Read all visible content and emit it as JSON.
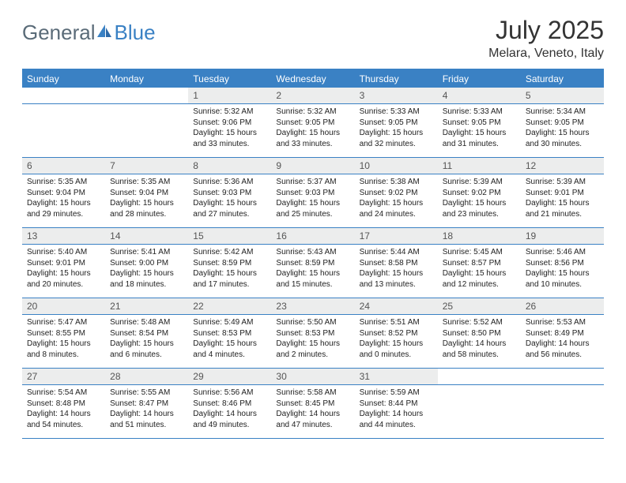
{
  "logo": {
    "textA": "General",
    "textB": "Blue"
  },
  "title": "July 2025",
  "location": "Melara, Veneto, Italy",
  "colors": {
    "accent": "#3a81c4",
    "header_bg": "#3a81c4",
    "day_bg": "#eceded",
    "text": "#222222",
    "logo_gray": "#5a6b78"
  },
  "weekdays": [
    "Sunday",
    "Monday",
    "Tuesday",
    "Wednesday",
    "Thursday",
    "Friday",
    "Saturday"
  ],
  "weeks": [
    [
      null,
      null,
      {
        "n": "1",
        "sr": "Sunrise: 5:32 AM",
        "ss": "Sunset: 9:06 PM",
        "d1": "Daylight: 15 hours",
        "d2": "and 33 minutes."
      },
      {
        "n": "2",
        "sr": "Sunrise: 5:32 AM",
        "ss": "Sunset: 9:05 PM",
        "d1": "Daylight: 15 hours",
        "d2": "and 33 minutes."
      },
      {
        "n": "3",
        "sr": "Sunrise: 5:33 AM",
        "ss": "Sunset: 9:05 PM",
        "d1": "Daylight: 15 hours",
        "d2": "and 32 minutes."
      },
      {
        "n": "4",
        "sr": "Sunrise: 5:33 AM",
        "ss": "Sunset: 9:05 PM",
        "d1": "Daylight: 15 hours",
        "d2": "and 31 minutes."
      },
      {
        "n": "5",
        "sr": "Sunrise: 5:34 AM",
        "ss": "Sunset: 9:05 PM",
        "d1": "Daylight: 15 hours",
        "d2": "and 30 minutes."
      }
    ],
    [
      {
        "n": "6",
        "sr": "Sunrise: 5:35 AM",
        "ss": "Sunset: 9:04 PM",
        "d1": "Daylight: 15 hours",
        "d2": "and 29 minutes."
      },
      {
        "n": "7",
        "sr": "Sunrise: 5:35 AM",
        "ss": "Sunset: 9:04 PM",
        "d1": "Daylight: 15 hours",
        "d2": "and 28 minutes."
      },
      {
        "n": "8",
        "sr": "Sunrise: 5:36 AM",
        "ss": "Sunset: 9:03 PM",
        "d1": "Daylight: 15 hours",
        "d2": "and 27 minutes."
      },
      {
        "n": "9",
        "sr": "Sunrise: 5:37 AM",
        "ss": "Sunset: 9:03 PM",
        "d1": "Daylight: 15 hours",
        "d2": "and 25 minutes."
      },
      {
        "n": "10",
        "sr": "Sunrise: 5:38 AM",
        "ss": "Sunset: 9:02 PM",
        "d1": "Daylight: 15 hours",
        "d2": "and 24 minutes."
      },
      {
        "n": "11",
        "sr": "Sunrise: 5:39 AM",
        "ss": "Sunset: 9:02 PM",
        "d1": "Daylight: 15 hours",
        "d2": "and 23 minutes."
      },
      {
        "n": "12",
        "sr": "Sunrise: 5:39 AM",
        "ss": "Sunset: 9:01 PM",
        "d1": "Daylight: 15 hours",
        "d2": "and 21 minutes."
      }
    ],
    [
      {
        "n": "13",
        "sr": "Sunrise: 5:40 AM",
        "ss": "Sunset: 9:01 PM",
        "d1": "Daylight: 15 hours",
        "d2": "and 20 minutes."
      },
      {
        "n": "14",
        "sr": "Sunrise: 5:41 AM",
        "ss": "Sunset: 9:00 PM",
        "d1": "Daylight: 15 hours",
        "d2": "and 18 minutes."
      },
      {
        "n": "15",
        "sr": "Sunrise: 5:42 AM",
        "ss": "Sunset: 8:59 PM",
        "d1": "Daylight: 15 hours",
        "d2": "and 17 minutes."
      },
      {
        "n": "16",
        "sr": "Sunrise: 5:43 AM",
        "ss": "Sunset: 8:59 PM",
        "d1": "Daylight: 15 hours",
        "d2": "and 15 minutes."
      },
      {
        "n": "17",
        "sr": "Sunrise: 5:44 AM",
        "ss": "Sunset: 8:58 PM",
        "d1": "Daylight: 15 hours",
        "d2": "and 13 minutes."
      },
      {
        "n": "18",
        "sr": "Sunrise: 5:45 AM",
        "ss": "Sunset: 8:57 PM",
        "d1": "Daylight: 15 hours",
        "d2": "and 12 minutes."
      },
      {
        "n": "19",
        "sr": "Sunrise: 5:46 AM",
        "ss": "Sunset: 8:56 PM",
        "d1": "Daylight: 15 hours",
        "d2": "and 10 minutes."
      }
    ],
    [
      {
        "n": "20",
        "sr": "Sunrise: 5:47 AM",
        "ss": "Sunset: 8:55 PM",
        "d1": "Daylight: 15 hours",
        "d2": "and 8 minutes."
      },
      {
        "n": "21",
        "sr": "Sunrise: 5:48 AM",
        "ss": "Sunset: 8:54 PM",
        "d1": "Daylight: 15 hours",
        "d2": "and 6 minutes."
      },
      {
        "n": "22",
        "sr": "Sunrise: 5:49 AM",
        "ss": "Sunset: 8:53 PM",
        "d1": "Daylight: 15 hours",
        "d2": "and 4 minutes."
      },
      {
        "n": "23",
        "sr": "Sunrise: 5:50 AM",
        "ss": "Sunset: 8:53 PM",
        "d1": "Daylight: 15 hours",
        "d2": "and 2 minutes."
      },
      {
        "n": "24",
        "sr": "Sunrise: 5:51 AM",
        "ss": "Sunset: 8:52 PM",
        "d1": "Daylight: 15 hours",
        "d2": "and 0 minutes."
      },
      {
        "n": "25",
        "sr": "Sunrise: 5:52 AM",
        "ss": "Sunset: 8:50 PM",
        "d1": "Daylight: 14 hours",
        "d2": "and 58 minutes."
      },
      {
        "n": "26",
        "sr": "Sunrise: 5:53 AM",
        "ss": "Sunset: 8:49 PM",
        "d1": "Daylight: 14 hours",
        "d2": "and 56 minutes."
      }
    ],
    [
      {
        "n": "27",
        "sr": "Sunrise: 5:54 AM",
        "ss": "Sunset: 8:48 PM",
        "d1": "Daylight: 14 hours",
        "d2": "and 54 minutes."
      },
      {
        "n": "28",
        "sr": "Sunrise: 5:55 AM",
        "ss": "Sunset: 8:47 PM",
        "d1": "Daylight: 14 hours",
        "d2": "and 51 minutes."
      },
      {
        "n": "29",
        "sr": "Sunrise: 5:56 AM",
        "ss": "Sunset: 8:46 PM",
        "d1": "Daylight: 14 hours",
        "d2": "and 49 minutes."
      },
      {
        "n": "30",
        "sr": "Sunrise: 5:58 AM",
        "ss": "Sunset: 8:45 PM",
        "d1": "Daylight: 14 hours",
        "d2": "and 47 minutes."
      },
      {
        "n": "31",
        "sr": "Sunrise: 5:59 AM",
        "ss": "Sunset: 8:44 PM",
        "d1": "Daylight: 14 hours",
        "d2": "and 44 minutes."
      },
      null,
      null
    ]
  ]
}
